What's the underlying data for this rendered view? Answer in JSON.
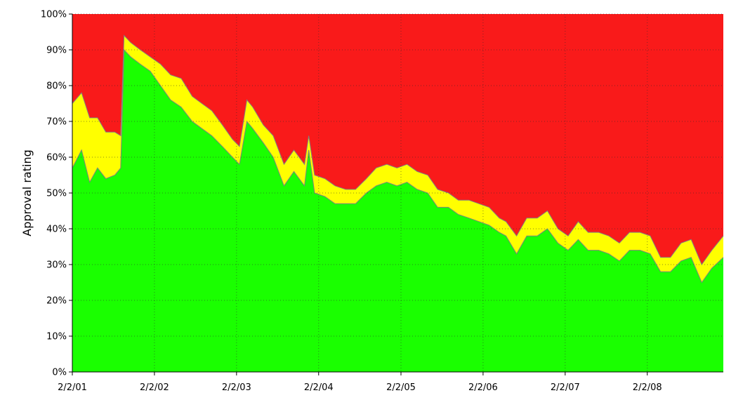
{
  "chart_data": {
    "type": "area",
    "stacked": true,
    "title": "",
    "xlabel": "",
    "ylabel": "Approval rating",
    "ylim": [
      0,
      100
    ],
    "y_ticks": [
      "0%",
      "10%",
      "20%",
      "30%",
      "40%",
      "50%",
      "60%",
      "70%",
      "80%",
      "90%",
      "100%"
    ],
    "x_ticks": [
      "2/2/01",
      "2/2/02",
      "2/2/03",
      "2/2/04",
      "2/2/05",
      "2/2/06",
      "2/2/07",
      "2/2/08"
    ],
    "x_range": [
      "2001-02-02",
      "2009-01-05"
    ],
    "grid": true,
    "legend": "none",
    "series": [
      {
        "color": "#1aff00",
        "x": [
          "2001-02-02",
          "2001-03-15",
          "2001-04-20",
          "2001-05-25",
          "2001-07-01",
          "2001-08-10",
          "2001-09-05",
          "2001-09-20",
          "2001-10-20",
          "2001-12-01",
          "2002-01-15",
          "2002-03-01",
          "2002-04-15",
          "2002-06-01",
          "2002-07-20",
          "2002-09-01",
          "2002-10-15",
          "2002-12-01",
          "2003-01-15",
          "2003-02-15",
          "2003-03-20",
          "2003-04-15",
          "2003-06-01",
          "2003-07-15",
          "2003-09-01",
          "2003-10-15",
          "2003-12-01",
          "2003-12-20",
          "2004-01-15",
          "2004-03-01",
          "2004-04-15",
          "2004-06-01",
          "2004-07-15",
          "2004-09-01",
          "2004-10-15",
          "2004-12-01",
          "2005-01-15",
          "2005-03-01",
          "2005-04-15",
          "2005-06-01",
          "2005-07-15",
          "2005-09-01",
          "2005-10-15",
          "2005-12-01",
          "2006-01-15",
          "2006-03-01",
          "2006-04-15",
          "2006-05-15",
          "2006-07-01",
          "2006-08-15",
          "2006-10-01",
          "2006-11-15",
          "2007-01-01",
          "2007-02-15",
          "2007-04-01",
          "2007-05-15",
          "2007-07-01",
          "2007-08-15",
          "2007-10-01",
          "2007-11-15",
          "2008-01-01",
          "2008-02-15",
          "2008-04-01",
          "2008-05-15",
          "2008-07-01",
          "2008-08-15",
          "2008-10-01",
          "2008-11-15",
          "2009-01-05"
        ],
        "values": [
          57,
          62,
          53,
          57,
          54,
          55,
          57,
          90,
          88,
          86,
          84,
          80,
          76,
          74,
          70,
          68,
          66,
          63,
          60,
          58,
          70,
          68,
          64,
          60,
          52,
          56,
          52,
          62,
          50,
          49,
          47,
          47,
          47,
          50,
          52,
          53,
          52,
          53,
          51,
          50,
          46,
          46,
          44,
          43,
          42,
          41,
          39,
          38,
          33,
          38,
          38,
          40,
          36,
          34,
          37,
          34,
          34,
          33,
          31,
          34,
          34,
          33,
          28,
          28,
          31,
          32,
          25,
          29,
          32
        ]
      },
      {
        "color": "#ffff00",
        "x": [
          "2001-02-02",
          "2001-03-15",
          "2001-04-20",
          "2001-05-25",
          "2001-07-01",
          "2001-08-10",
          "2001-09-05",
          "2001-09-20",
          "2001-10-20",
          "2001-12-01",
          "2002-01-15",
          "2002-03-01",
          "2002-04-15",
          "2002-06-01",
          "2002-07-20",
          "2002-09-01",
          "2002-10-15",
          "2002-12-01",
          "2003-01-15",
          "2003-02-15",
          "2003-03-20",
          "2003-04-15",
          "2003-06-01",
          "2003-07-15",
          "2003-09-01",
          "2003-10-15",
          "2003-12-01",
          "2003-12-20",
          "2004-01-15",
          "2004-03-01",
          "2004-04-15",
          "2004-06-01",
          "2004-07-15",
          "2004-09-01",
          "2004-10-15",
          "2004-12-01",
          "2005-01-15",
          "2005-03-01",
          "2005-04-15",
          "2005-06-01",
          "2005-07-15",
          "2005-09-01",
          "2005-10-15",
          "2005-12-01",
          "2006-01-15",
          "2006-03-01",
          "2006-04-15",
          "2006-05-15",
          "2006-07-01",
          "2006-08-15",
          "2006-10-01",
          "2006-11-15",
          "2007-01-01",
          "2007-02-15",
          "2007-04-01",
          "2007-05-15",
          "2007-07-01",
          "2007-08-15",
          "2007-10-01",
          "2007-11-15",
          "2008-01-01",
          "2008-02-15",
          "2008-04-01",
          "2008-05-15",
          "2008-07-01",
          "2008-08-15",
          "2008-10-01",
          "2008-11-15",
          "2009-01-05"
        ],
        "values": [
          18,
          16,
          18,
          14,
          13,
          12,
          9,
          4,
          4,
          4,
          4,
          6,
          7,
          8,
          7,
          7,
          7,
          6,
          5,
          5,
          6,
          6,
          5,
          6,
          6,
          6,
          6,
          4,
          5,
          5,
          5,
          4,
          4,
          4,
          5,
          5,
          5,
          5,
          5,
          5,
          5,
          4,
          4,
          5,
          5,
          5,
          4,
          4,
          5,
          5,
          5,
          5,
          4,
          4,
          5,
          5,
          5,
          5,
          5,
          5,
          5,
          5,
          4,
          4,
          5,
          5,
          5,
          5,
          6
        ]
      },
      {
        "color": "#f91a1a",
        "note_color_only": true,
        "x": [],
        "values": []
      }
    ]
  }
}
